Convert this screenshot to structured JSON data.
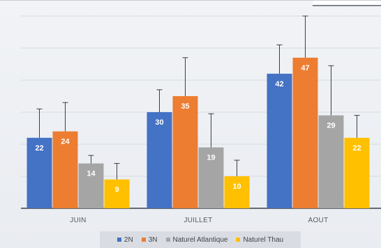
{
  "chart_data": {
    "type": "bar",
    "title": "",
    "xlabel": "",
    "ylabel": "",
    "ylim": [
      0,
      60
    ],
    "grid": true,
    "legend_position": "bottom",
    "categories": [
      "JUIN",
      "JUILLET",
      "AOUT"
    ],
    "series": [
      {
        "name": "2N",
        "color": "#4472c4",
        "values": [
          22,
          30,
          42
        ],
        "errors": [
          9,
          7,
          9
        ]
      },
      {
        "name": "3N",
        "color": "#ed7d31",
        "values": [
          24,
          35,
          47
        ],
        "errors": [
          9,
          12,
          13
        ]
      },
      {
        "name": "Naturel Atlantique",
        "color": "#a5a5a5",
        "values": [
          14,
          19,
          29
        ],
        "errors": [
          2.5,
          10.5,
          15.5
        ]
      },
      {
        "name": "Naturel Thau",
        "color": "#ffc000",
        "values": [
          9,
          10,
          22
        ],
        "errors": [
          5,
          5,
          7
        ]
      }
    ]
  }
}
